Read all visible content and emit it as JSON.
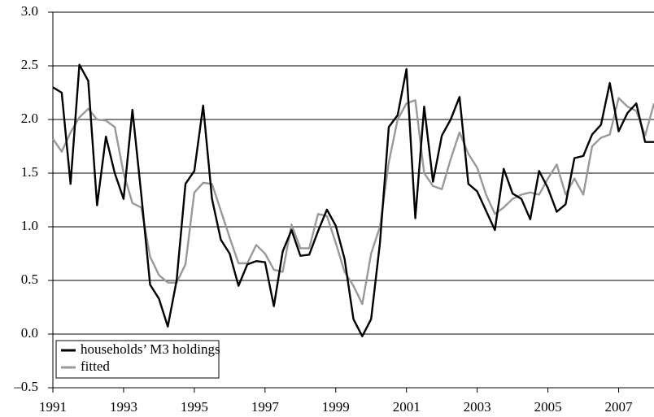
{
  "chart_data": {
    "type": "line",
    "x": [
      1991,
      1991.25,
      1991.5,
      1991.75,
      1992,
      1992.25,
      1992.5,
      1992.75,
      1993,
      1993.25,
      1993.5,
      1993.75,
      1994,
      1994.25,
      1994.5,
      1994.75,
      1995,
      1995.25,
      1995.5,
      1995.75,
      1996,
      1996.25,
      1996.5,
      1996.75,
      1997,
      1997.25,
      1997.5,
      1997.75,
      1998,
      1998.25,
      1998.5,
      1998.75,
      1999,
      1999.25,
      1999.5,
      1999.75,
      2000,
      2000.25,
      2000.5,
      2000.75,
      2001,
      2001.25,
      2001.5,
      2001.75,
      2002,
      2002.25,
      2002.5,
      2002.75,
      2003,
      2003.25,
      2003.5,
      2003.75,
      2004,
      2004.25,
      2004.5,
      2004.75,
      2005,
      2005.25,
      2005.5,
      2005.75,
      2006,
      2006.25,
      2006.5,
      2006.75,
      2007,
      2007.25,
      2007.5,
      2007.75,
      2008
    ],
    "series": [
      {
        "name": "households’ M3 holdings",
        "color": "#000000",
        "values": [
          2.3,
          2.25,
          1.4,
          2.51,
          2.36,
          1.2,
          1.84,
          1.5,
          1.26,
          2.09,
          1.3,
          0.46,
          0.33,
          0.07,
          0.5,
          1.4,
          1.52,
          2.13,
          1.26,
          0.88,
          0.75,
          0.45,
          0.65,
          0.68,
          0.67,
          0.26,
          0.77,
          0.97,
          0.73,
          0.74,
          0.96,
          1.16,
          1.01,
          0.7,
          0.14,
          -0.02,
          0.14,
          0.85,
          1.93,
          2.04,
          2.47,
          1.08,
          2.12,
          1.42,
          1.85,
          2.0,
          2.21,
          1.4,
          1.33,
          1.15,
          0.97,
          1.54,
          1.31,
          1.26,
          1.07,
          1.52,
          1.36,
          1.14,
          1.21,
          1.64,
          1.66,
          1.86,
          1.95,
          2.34,
          1.89,
          2.06,
          2.15,
          1.79,
          1.79
        ]
      },
      {
        "name": "fitted",
        "color": "#999999",
        "values": [
          1.82,
          1.7,
          1.88,
          2.02,
          2.1,
          2.0,
          1.99,
          1.93,
          1.5,
          1.22,
          1.18,
          0.72,
          0.55,
          0.48,
          0.48,
          0.65,
          1.32,
          1.41,
          1.4,
          1.15,
          0.9,
          0.66,
          0.66,
          0.83,
          0.75,
          0.6,
          0.58,
          1.02,
          0.8,
          0.8,
          1.12,
          1.1,
          0.85,
          0.58,
          0.45,
          0.28,
          0.75,
          1.0,
          1.6,
          2.0,
          2.15,
          2.18,
          1.5,
          1.38,
          1.35,
          1.63,
          1.88,
          1.68,
          1.55,
          1.3,
          1.12,
          1.18,
          1.26,
          1.3,
          1.32,
          1.3,
          1.45,
          1.58,
          1.3,
          1.45,
          1.3,
          1.75,
          1.83,
          1.86,
          2.2,
          2.12,
          2.08,
          1.85,
          2.15
        ]
      }
    ],
    "xlim": [
      1991,
      2008
    ],
    "xticks": [
      1991,
      1993,
      1995,
      1997,
      1999,
      2001,
      2003,
      2005,
      2007
    ],
    "ylim": [
      -0.5,
      3.0
    ],
    "yticks": [
      {
        "value": -0.5,
        "label": "–0.5"
      },
      {
        "value": 0,
        "label": "0.0"
      },
      0.5,
      {
        "value": 1,
        "label": "1.0"
      },
      1.5,
      {
        "value": 2,
        "label": "2.0"
      },
      2.5,
      {
        "value": 3,
        "label": "3.0"
      }
    ],
    "grid": true,
    "legend": "lower-left"
  }
}
